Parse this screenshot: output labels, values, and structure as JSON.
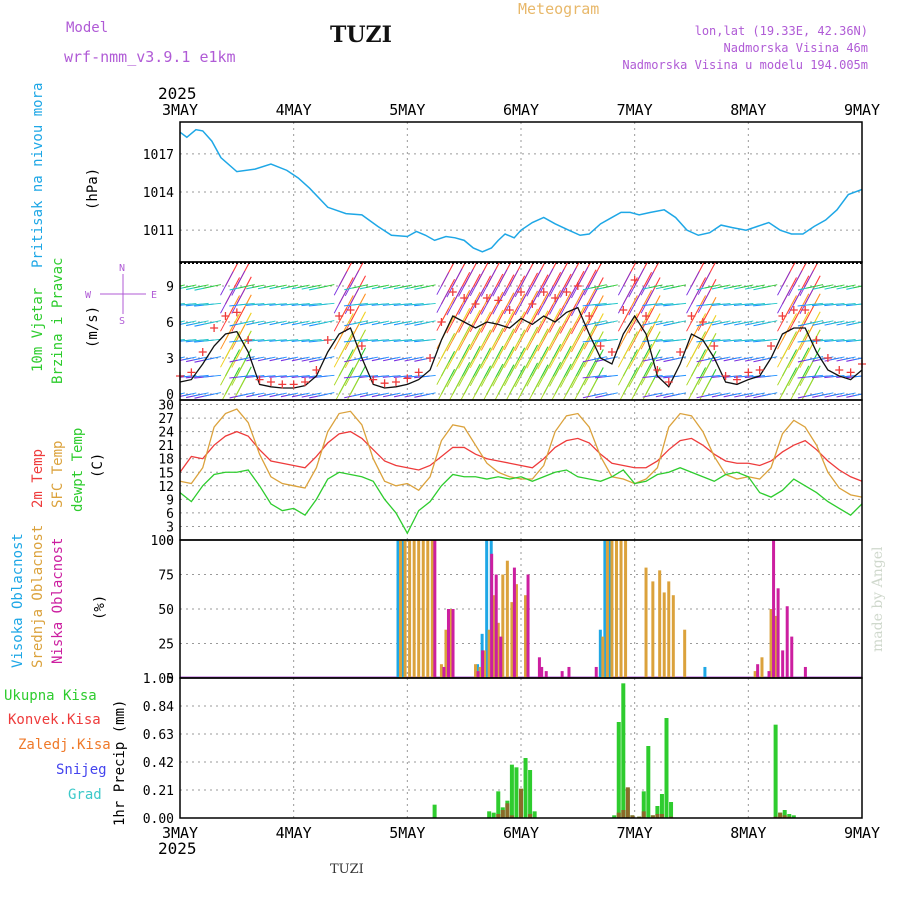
{
  "header": {
    "model_label": "Model",
    "model_run": "wrf-nmm_v3.9.1 e1km",
    "station": "TUZI",
    "title": "Meteogram",
    "location": "lon,lat (19.33E, 42.36N)",
    "altitude": "Nadmorska Visina 46m",
    "model_altitude": "Nadmorska Visina u modelu 194.005m"
  },
  "footer": {
    "station": "TUZI",
    "credit": "made by Angel"
  },
  "time_axis": {
    "year": "2025",
    "labels": [
      "3MAY",
      "4MAY",
      "5MAY",
      "6MAY",
      "7MAY",
      "8MAY",
      "9MAY"
    ]
  },
  "colors": {
    "pressure": "#1ea7e6",
    "t2m": "#ee3b3b",
    "sfc_temp": "#dba23c",
    "dewpt": "#2ecc2e",
    "cloud_high": "#1ea7e6",
    "cloud_mid": "#dba23c",
    "cloud_low": "#cc1fa0",
    "rain_total": "#2ecc2e",
    "rain_conv": "#ee3b3b",
    "rain_frozen": "#ef7a2a",
    "snow": "#4444ee",
    "hail": "#3cc9c9",
    "wind_line": "#111111",
    "gust": "#ee3b3b"
  },
  "chart_data": [
    {
      "type": "line",
      "panel": "pressure",
      "ylabel": [
        "Pritisak na nivou mora",
        "(hPa)"
      ],
      "yticks": [
        1011,
        1014,
        1017
      ],
      "ylim": [
        1008.5,
        1019.5
      ],
      "x_days": [
        0,
        0.06,
        0.14,
        0.2,
        0.28,
        0.36,
        0.5,
        0.66,
        0.8,
        0.94,
        1.04,
        1.14,
        1.3,
        1.46,
        1.6,
        1.74,
        1.86,
        2.0,
        2.08,
        2.16,
        2.24,
        2.34,
        2.42,
        2.5,
        2.58,
        2.66,
        2.74,
        2.8,
        2.86,
        2.94,
        3.0,
        3.1,
        3.2,
        3.3,
        3.42,
        3.52,
        3.6,
        3.7,
        3.8,
        3.88,
        3.96,
        4.04,
        4.14,
        4.26,
        4.36,
        4.46,
        4.56,
        4.66,
        4.76,
        4.86,
        4.98,
        5.08,
        5.18,
        5.28,
        5.38,
        5.48,
        5.58,
        5.68,
        5.78,
        5.88,
        6.0
      ],
      "series": [
        {
          "values": [
            1018.7,
            1018.3,
            1018.9,
            1018.8,
            1018.0,
            1016.7,
            1015.6,
            1015.8,
            1016.2,
            1015.7,
            1015.1,
            1014.3,
            1012.8,
            1012.3,
            1012.2,
            1011.3,
            1010.6,
            1010.5,
            1010.9,
            1010.6,
            1010.2,
            1010.5,
            1010.4,
            1010.2,
            1009.6,
            1009.3,
            1009.6,
            1010.2,
            1010.7,
            1010.4,
            1011.0,
            1011.6,
            1012.0,
            1011.5,
            1011.0,
            1010.6,
            1010.7,
            1011.5,
            1012.0,
            1012.4,
            1012.4,
            1012.2,
            1012.4,
            1012.6,
            1012.0,
            1011.0,
            1010.6,
            1010.8,
            1011.4,
            1011.2,
            1011.0,
            1011.3,
            1011.6,
            1011.0,
            1010.7,
            1010.7,
            1011.3,
            1011.8,
            1012.6,
            1013.8,
            1014.2
          ]
        }
      ]
    },
    {
      "type": "line",
      "panel": "wind",
      "ylabel": [
        "10m Vjetar",
        "Brzina i Pravac",
        "(m/s)"
      ],
      "direction_key": [
        "N",
        "W",
        "E",
        "S"
      ],
      "yticks": [
        0,
        3,
        6,
        9
      ],
      "ylim": [
        -0.5,
        11
      ],
      "x_days": [
        0,
        0.1,
        0.2,
        0.3,
        0.4,
        0.5,
        0.6,
        0.7,
        0.8,
        0.9,
        1.0,
        1.1,
        1.2,
        1.3,
        1.4,
        1.5,
        1.6,
        1.7,
        1.8,
        1.9,
        2.0,
        2.1,
        2.2,
        2.3,
        2.4,
        2.5,
        2.6,
        2.7,
        2.8,
        2.9,
        3.0,
        3.1,
        3.2,
        3.3,
        3.4,
        3.5,
        3.6,
        3.7,
        3.8,
        3.9,
        4.0,
        4.1,
        4.2,
        4.3,
        4.4,
        4.5,
        4.6,
        4.7,
        4.8,
        4.9,
        5.0,
        5.1,
        5.2,
        5.3,
        5.4,
        5.5,
        5.6,
        5.7,
        5.8,
        5.9,
        6.0
      ],
      "series": [
        {
          "name": "speed",
          "values": [
            1.0,
            1.2,
            2.5,
            4.0,
            5.0,
            5.2,
            3.5,
            0.8,
            0.6,
            0.5,
            0.5,
            0.7,
            1.5,
            3.5,
            5.0,
            5.5,
            3.0,
            0.8,
            0.5,
            0.6,
            0.8,
            1.2,
            2.0,
            4.5,
            6.5,
            6.0,
            5.5,
            6.0,
            5.8,
            5.5,
            6.3,
            5.8,
            6.5,
            6.0,
            6.8,
            7.2,
            5.0,
            3.0,
            2.5,
            5.0,
            6.5,
            5.0,
            1.5,
            0.6,
            2.5,
            5.0,
            4.5,
            3.0,
            1.0,
            0.8,
            1.2,
            1.5,
            3.0,
            5.0,
            5.5,
            5.5,
            3.5,
            2.0,
            1.5,
            1.2,
            2.0
          ]
        },
        {
          "name": "gust",
          "values": [
            1.5,
            1.8,
            3.5,
            5.5,
            6.5,
            6.8,
            4.5,
            1.2,
            1.0,
            0.8,
            0.8,
            1.0,
            2.0,
            4.5,
            6.5,
            7.0,
            4.0,
            1.2,
            0.9,
            1.0,
            1.3,
            1.8,
            3.0,
            6.0,
            8.5,
            8.0,
            7.5,
            8.0,
            7.8,
            7.0,
            8.5,
            7.5,
            8.5,
            8.0,
            8.5,
            9.0,
            6.5,
            4.0,
            3.5,
            7.0,
            9.5,
            6.5,
            2.0,
            1.0,
            3.5,
            6.5,
            6.0,
            4.0,
            1.5,
            1.2,
            1.8,
            2.0,
            4.0,
            6.5,
            7.0,
            7.0,
            4.5,
            3.0,
            2.0,
            1.8,
            2.5
          ]
        }
      ]
    },
    {
      "type": "line",
      "panel": "temperature",
      "ylabel": [
        "2m Temp",
        "SFC Temp",
        "dewpt Temp",
        "(C)"
      ],
      "yticks": [
        0,
        3,
        6,
        9,
        12,
        15,
        18,
        21,
        24,
        27,
        30
      ],
      "ylim": [
        0,
        31
      ],
      "x_days": [
        0,
        0.1,
        0.2,
        0.3,
        0.4,
        0.5,
        0.6,
        0.7,
        0.8,
        0.9,
        1.0,
        1.1,
        1.2,
        1.3,
        1.4,
        1.5,
        1.6,
        1.7,
        1.8,
        1.9,
        2.0,
        2.1,
        2.2,
        2.3,
        2.4,
        2.5,
        2.6,
        2.7,
        2.8,
        2.9,
        3.0,
        3.1,
        3.2,
        3.3,
        3.4,
        3.5,
        3.6,
        3.7,
        3.8,
        3.9,
        4.0,
        4.1,
        4.2,
        4.3,
        4.4,
        4.5,
        4.6,
        4.7,
        4.8,
        4.9,
        5.0,
        5.1,
        5.2,
        5.3,
        5.4,
        5.5,
        5.6,
        5.7,
        5.8,
        5.9,
        6.0
      ],
      "series": [
        {
          "name": "2m Temp",
          "values": [
            15.0,
            18.5,
            18.0,
            21.0,
            23.0,
            24.0,
            23.0,
            20.0,
            17.5,
            17.0,
            16.5,
            16.0,
            18.5,
            21.5,
            23.5,
            24.0,
            22.5,
            20.0,
            17.5,
            16.5,
            16.0,
            15.5,
            16.5,
            18.5,
            20.5,
            20.5,
            19.0,
            18.0,
            17.5,
            17.0,
            16.5,
            16.0,
            18.0,
            20.5,
            22.0,
            22.5,
            21.5,
            19.0,
            17.0,
            16.5,
            16.0,
            16.0,
            17.5,
            20.0,
            22.0,
            22.5,
            21.0,
            19.0,
            17.5,
            17.0,
            17.0,
            16.5,
            17.5,
            19.5,
            21.0,
            22.0,
            20.0,
            17.5,
            15.5,
            14.0,
            13.0
          ]
        },
        {
          "name": "SFC Temp",
          "values": [
            13.0,
            12.5,
            16.0,
            25.0,
            28.0,
            29.0,
            26.0,
            19.0,
            14.0,
            12.5,
            12.0,
            11.5,
            16.0,
            24.0,
            28.0,
            28.5,
            25.5,
            18.0,
            13.0,
            12.0,
            12.5,
            11.0,
            14.0,
            22.0,
            25.5,
            25.0,
            21.0,
            17.0,
            15.0,
            14.0,
            13.5,
            13.5,
            16.5,
            24.0,
            27.5,
            28.0,
            25.0,
            18.5,
            14.0,
            13.5,
            12.5,
            13.5,
            16.0,
            25.0,
            28.0,
            27.5,
            24.0,
            18.5,
            14.5,
            13.5,
            14.0,
            13.5,
            16.0,
            23.5,
            26.5,
            25.0,
            21.0,
            15.0,
            11.5,
            10.0,
            9.5
          ]
        },
        {
          "name": "dewpt Temp",
          "values": [
            10.5,
            8.5,
            12.0,
            14.5,
            15.0,
            15.0,
            15.5,
            12.0,
            8.0,
            6.5,
            7.0,
            5.5,
            9.0,
            13.5,
            15.0,
            14.5,
            14.0,
            13.0,
            9.0,
            6.0,
            1.5,
            6.5,
            8.5,
            12.0,
            14.5,
            14.0,
            14.0,
            13.5,
            14.0,
            13.5,
            14.0,
            13.0,
            14.0,
            15.0,
            15.5,
            14.0,
            13.5,
            13.0,
            14.0,
            15.5,
            12.5,
            13.0,
            14.5,
            15.0,
            16.0,
            15.0,
            14.0,
            13.0,
            14.5,
            15.0,
            14.0,
            10.5,
            9.5,
            11.0,
            13.5,
            12.0,
            10.5,
            8.5,
            7.0,
            5.5,
            8.0
          ]
        }
      ]
    },
    {
      "type": "bar",
      "panel": "clouds",
      "ylabel": [
        "Visoka Oblacnost",
        "Srednja Oblacnost",
        "Niska Oblacnost",
        "(%)"
      ],
      "yticks": [
        0,
        25,
        50,
        75,
        100
      ],
      "ylim": [
        0,
        100
      ],
      "x_days": [
        1.94,
        1.98,
        2.02,
        2.06,
        2.1,
        2.14,
        2.18,
        2.22,
        2.3,
        2.34,
        2.38,
        2.6,
        2.64,
        2.68,
        2.72,
        2.76,
        2.8,
        2.84,
        2.88,
        2.92,
        2.96,
        3.04,
        3.14,
        3.16,
        3.2,
        3.34,
        3.4,
        3.64,
        3.72,
        3.76,
        3.8,
        3.84,
        3.88,
        3.92,
        3.96,
        4.0,
        4.1,
        4.16,
        4.22,
        4.26,
        4.3,
        4.34,
        4.44,
        4.48,
        4.56,
        4.64,
        4.7,
        4.78,
        4.9,
        4.94,
        5.06,
        5.12,
        5.16,
        5.2,
        5.24,
        5.28,
        5.32,
        5.36,
        5.48
      ],
      "series": [
        {
          "name": "Visoka Oblacnost",
          "values": [
            100,
            100,
            0,
            0,
            0,
            0,
            0,
            0,
            0,
            0,
            0,
            0,
            10,
            32,
            100,
            100,
            0,
            0,
            0,
            0,
            0,
            0,
            0,
            0,
            0,
            0,
            0,
            0,
            35,
            100,
            100,
            0,
            0,
            0,
            0,
            0,
            0,
            0,
            0,
            0,
            0,
            0,
            0,
            0,
            0,
            8,
            0,
            0,
            0,
            0,
            0,
            0,
            0,
            0,
            0,
            0,
            0,
            0,
            0
          ]
        },
        {
          "name": "Srednja Oblacnost",
          "values": [
            100,
            100,
            100,
            100,
            100,
            100,
            100,
            100,
            10,
            35,
            50,
            10,
            8,
            20,
            35,
            60,
            40,
            75,
            85,
            55,
            68,
            60,
            0,
            0,
            0,
            0,
            0,
            0,
            30,
            100,
            100,
            100,
            100,
            100,
            0,
            0,
            80,
            70,
            78,
            62,
            70,
            60,
            35,
            0,
            0,
            0,
            0,
            0,
            0,
            0,
            5,
            15,
            0,
            50,
            45,
            0,
            0,
            0,
            0
          ]
        },
        {
          "name": "Niska Oblacnost",
          "values": [
            0,
            0,
            0,
            0,
            0,
            0,
            0,
            100,
            8,
            50,
            50,
            5,
            20,
            0,
            90,
            75,
            30,
            0,
            0,
            80,
            0,
            75,
            15,
            8,
            5,
            5,
            8,
            8,
            0,
            0,
            0,
            0,
            0,
            0,
            0,
            0,
            0,
            0,
            0,
            0,
            0,
            0,
            0,
            0,
            0,
            0,
            0,
            0,
            0,
            0,
            10,
            0,
            5,
            100,
            65,
            20,
            52,
            30,
            8
          ]
        }
      ]
    },
    {
      "type": "bar",
      "panel": "precipitation",
      "ylabel": [
        "1hr Precip (mm)"
      ],
      "legend": [
        "Ukupna Kisa",
        "Konvek.Kisa",
        "Zaledj.Kisa",
        "Snijeg",
        "Grad"
      ],
      "yticks": [
        0,
        0.21,
        0.42,
        0.63,
        0.84,
        1.05
      ],
      "ylim": [
        0,
        1.05
      ],
      "x_days": [
        2.24,
        2.72,
        2.76,
        2.8,
        2.84,
        2.88,
        2.92,
        2.96,
        3.0,
        3.04,
        3.08,
        3.12,
        3.16,
        3.2,
        3.24,
        3.28,
        3.82,
        3.86,
        3.9,
        3.94,
        3.98,
        4.04,
        4.08,
        4.12,
        4.16,
        4.2,
        4.24,
        4.28,
        4.32,
        5.24,
        5.28,
        5.32,
        5.36,
        5.4
      ],
      "series": [
        {
          "name": "Ukupna Kisa",
          "values": [
            0.1,
            0.05,
            0.04,
            0.2,
            0.08,
            0.13,
            0.4,
            0.38,
            0.03,
            0.45,
            0.36,
            0.05,
            0,
            0,
            0,
            0,
            0.02,
            0.72,
            1.01,
            0.22,
            0.02,
            0.01,
            0.2,
            0.54,
            0.02,
            0.09,
            0.18,
            0.75,
            0.12,
            0.7,
            0.04,
            0.06,
            0.03,
            0.02
          ]
        },
        {
          "name": "Konvek.Kisa",
          "values": [
            0,
            0,
            0,
            0.03,
            0.06,
            0.11,
            0.02,
            0,
            0.22,
            0,
            0.03,
            0,
            0,
            0,
            0,
            0,
            0,
            0.04,
            0.06,
            0.23,
            0.02,
            0.01,
            0.05,
            0,
            0.02,
            0.03,
            0.03,
            0,
            0.01,
            0.01,
            0.04,
            0.02,
            0.01,
            0
          ]
        }
      ]
    }
  ]
}
